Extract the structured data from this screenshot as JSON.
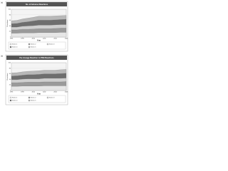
{
  "chart_data": [
    {
      "type": "area",
      "panel_label": "(a)",
      "title": "No. of Adverse Reactions",
      "xlabel": "Year",
      "ylabel": "Reactions",
      "x": [
        1996,
        1997,
        1998,
        1999,
        2000,
        2001,
        2002,
        2003,
        2004,
        2005,
        2006
      ],
      "xlim": [
        1996,
        2006
      ],
      "xticks": [
        1996,
        1998,
        2000,
        2002,
        2004,
        2006
      ],
      "ylim": [
        0,
        100
      ],
      "yticks": [
        0,
        20,
        40,
        60,
        80,
        100
      ],
      "series": [
        {
          "name": "Series 1",
          "color": "#e6e6e6",
          "values": [
            14,
            14,
            15,
            15,
            15,
            16,
            16,
            16,
            16,
            17,
            17
          ]
        },
        {
          "name": "Series 2",
          "color": "#9a9a9a",
          "values": [
            12,
            12,
            13,
            13,
            14,
            14,
            14,
            14,
            15,
            15,
            15
          ]
        },
        {
          "name": "Series 3",
          "color": "#cfcfcf",
          "values": [
            10,
            10,
            11,
            12,
            12,
            13,
            13,
            13,
            13,
            13,
            13
          ]
        },
        {
          "name": "Series 4",
          "color": "#6e6e6e",
          "values": [
            12,
            13,
            14,
            15,
            17,
            18,
            18,
            18,
            18,
            18,
            19
          ]
        },
        {
          "name": "Series 5",
          "color": "#b8b8b8",
          "values": [
            10,
            11,
            12,
            13,
            13,
            14,
            14,
            14,
            14,
            14,
            14
          ]
        }
      ]
    },
    {
      "type": "area",
      "panel_label": "(b)",
      "title": "Per-dosage Reaction to PKB Reactions",
      "xlabel": "Year",
      "ylabel": "Reactions",
      "x": [
        1996,
        1997,
        1998,
        1999,
        2000,
        2001,
        2002,
        2003,
        2004,
        2005,
        2006
      ],
      "xlim": [
        1996,
        2006
      ],
      "xticks": [
        1996,
        1998,
        2000,
        2002,
        2004,
        2006
      ],
      "ylim": [
        0,
        100
      ],
      "yticks": [
        0,
        20,
        40,
        60,
        80,
        100
      ],
      "series": [
        {
          "name": "Series 1",
          "color": "#e6e6e6",
          "values": [
            15,
            15,
            16,
            16,
            16,
            16,
            17,
            17,
            17,
            17,
            17
          ]
        },
        {
          "name": "Series 2",
          "color": "#9a9a9a",
          "values": [
            13,
            13,
            13,
            14,
            14,
            14,
            14,
            14,
            14,
            14,
            15
          ]
        },
        {
          "name": "Series 3",
          "color": "#cfcfcf",
          "values": [
            11,
            11,
            12,
            12,
            12,
            12,
            13,
            13,
            13,
            13,
            13
          ]
        },
        {
          "name": "Series 4",
          "color": "#6e6e6e",
          "values": [
            13,
            14,
            14,
            15,
            15,
            16,
            16,
            16,
            16,
            17,
            17
          ]
        },
        {
          "name": "Series 5",
          "color": "#b8b8b8",
          "values": [
            11,
            11,
            12,
            12,
            13,
            13,
            13,
            13,
            13,
            14,
            14
          ]
        }
      ]
    }
  ]
}
